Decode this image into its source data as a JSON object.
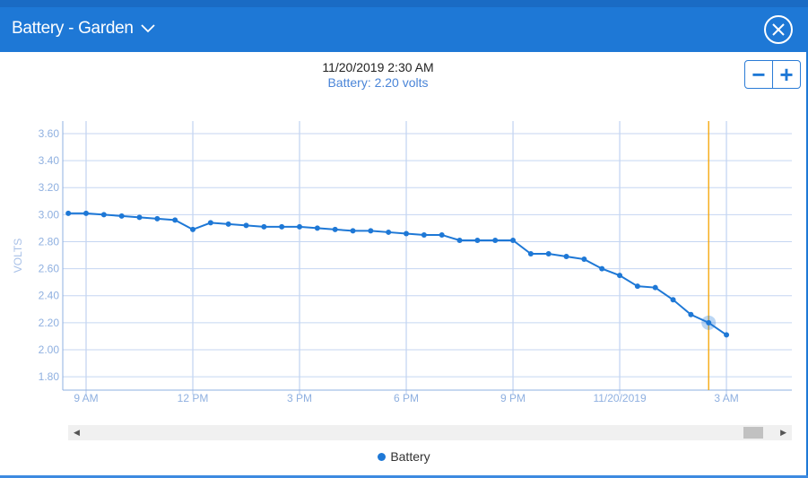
{
  "header": {
    "title": "Battery - Garden"
  },
  "tooltip": {
    "timestamp": "11/20/2019 2:30 AM",
    "value": "Battery: 2.20 volts"
  },
  "zoom": {
    "out": "−",
    "in": "+"
  },
  "legend": {
    "label": "Battery"
  },
  "colors": {
    "header": "#1e78d6",
    "series": "#1e78d6",
    "crosshair": "#f5a300",
    "grid": "#c5d6f2"
  },
  "chart_data": {
    "type": "line",
    "ylabel": "VOLTS",
    "ylim": [
      1.72,
      3.7
    ],
    "yticks": [
      3.6,
      3.4,
      3.2,
      3.0,
      2.8,
      2.6,
      2.4,
      2.2,
      2.0,
      1.8
    ],
    "ytick_labels": [
      "3.60",
      "3.40",
      "3.20",
      "3.00",
      "2.80",
      "2.60",
      "2.40",
      "2.20",
      "2.00",
      "1.80"
    ],
    "xtick_labels": [
      "9 AM",
      "12 PM",
      "3 PM",
      "6 PM",
      "9 PM",
      "11/20/2019",
      "3 AM"
    ],
    "xtick_hours": [
      9,
      12,
      15,
      18,
      21,
      24,
      27
    ],
    "x_hours_start": 8.5,
    "x_step_hours": 0.5,
    "series": [
      {
        "name": "Battery",
        "values": [
          3.01,
          3.01,
          3.0,
          2.99,
          2.98,
          2.97,
          2.96,
          2.89,
          2.94,
          2.93,
          2.92,
          2.91,
          2.91,
          2.91,
          2.9,
          2.89,
          2.88,
          2.88,
          2.87,
          2.86,
          2.85,
          2.85,
          2.81,
          2.81,
          2.81,
          2.81,
          2.71,
          2.71,
          2.69,
          2.67,
          2.6,
          2.55,
          2.47,
          2.46,
          2.37,
          2.26,
          2.2,
          2.11
        ]
      }
    ],
    "highlight_hour": 26.5,
    "grid": true,
    "legend_position": "bottom"
  }
}
